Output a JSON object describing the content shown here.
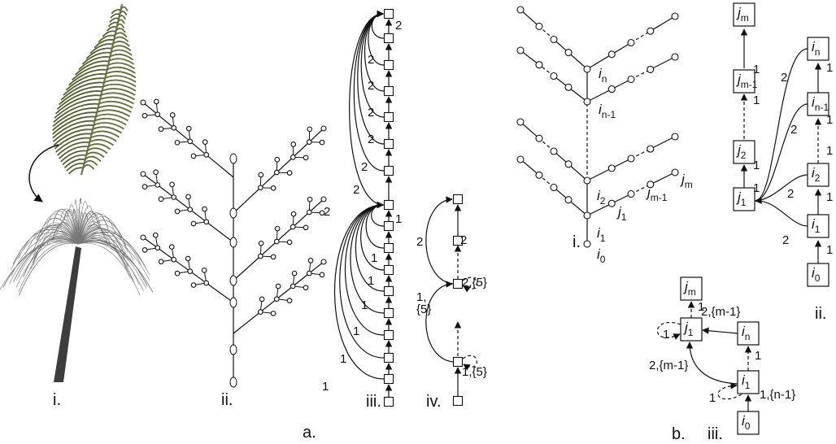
{
  "figure_a": {
    "caption": "a.",
    "panel_i": "i.",
    "panel_ii": "ii.",
    "panel_iii": "iii.",
    "panel_iv": "iv.",
    "iii_edge_labels": [
      "2",
      "2",
      "2",
      "2",
      "2",
      "2",
      "2",
      "2",
      "1",
      "1",
      "1",
      "1",
      "1",
      "1",
      "1"
    ],
    "iv_edge_labels": [
      "2",
      "2",
      "1,",
      "{5}",
      "2,{5}",
      "1,{5}"
    ]
  },
  "figure_b": {
    "caption": "b.",
    "panel_i": {
      "label": "i.",
      "nodes": [
        {
          "main": "i",
          "sub": "n"
        },
        {
          "main": "i",
          "sub": "n-1"
        },
        {
          "main": "i",
          "sub": "2"
        },
        {
          "main": "i",
          "sub": "1"
        },
        {
          "main": "i",
          "sub": "0"
        },
        {
          "main": "j",
          "sub": "m"
        },
        {
          "main": "j",
          "sub": "m-1"
        },
        {
          "main": "j",
          "sub": "1"
        }
      ]
    },
    "panel_ii": {
      "label": "ii.",
      "nodes": [
        {
          "main": "j",
          "sub": "m"
        },
        {
          "main": "j",
          "sub": "m-1"
        },
        {
          "main": "j",
          "sub": "2"
        },
        {
          "main": "j",
          "sub": "1"
        },
        {
          "main": "i",
          "sub": "n"
        },
        {
          "main": "i",
          "sub": "n-1"
        },
        {
          "main": "i",
          "sub": "2"
        },
        {
          "main": "i",
          "sub": "1"
        },
        {
          "main": "i",
          "sub": "0"
        }
      ],
      "edge_labels": [
        "1",
        "1",
        "1",
        "1",
        "1",
        "1",
        "1",
        "1",
        "1",
        "2",
        "2",
        "2",
        "2"
      ]
    },
    "panel_iii": {
      "label": "iii.",
      "nodes": [
        {
          "main": "j",
          "sub": "m"
        },
        {
          "main": "j",
          "sub": "1"
        },
        {
          "main": "i",
          "sub": "n"
        },
        {
          "main": "i",
          "sub": "1"
        },
        {
          "main": "i",
          "sub": "0"
        }
      ],
      "edge_labels": [
        "1",
        "1",
        "2,{m-1}",
        "1",
        "2,{m-1}",
        "1",
        "1,{n-1}"
      ]
    }
  }
}
